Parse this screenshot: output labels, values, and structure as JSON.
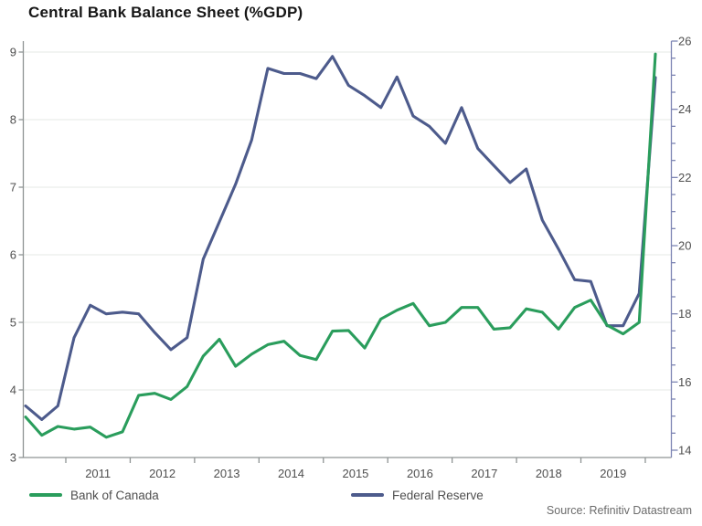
{
  "title": "Central Bank Balance Sheet (%GDP)",
  "source": "Source: Refinitiv Datastream",
  "legend": {
    "items": [
      {
        "label": "Bank of Canada"
      },
      {
        "label": "Federal Reserve"
      }
    ]
  },
  "colors": {
    "boc_line": "#2a9d5c",
    "fed_line": "#4d5b8c",
    "left_axis": "#8f9494",
    "bottom_axis": "#8f9494",
    "right_axis": "#7d85b3",
    "gridline": "#e4eae5",
    "tick_label": "#4f4f4f",
    "title_text": "#161616",
    "source_text": "#6b6b6b"
  },
  "chart_data": {
    "type": "line",
    "title": "Central Bank Balance Sheet (%GDP)",
    "x_label": "",
    "y_left_label": "",
    "y_right_label": "",
    "grid": "horizontal-left-integers",
    "legend_position": "bottom",
    "x_quarters": [
      "2010-Q2",
      "2010-Q3",
      "2010-Q4",
      "2011-Q1",
      "2011-Q2",
      "2011-Q3",
      "2011-Q4",
      "2012-Q1",
      "2012-Q2",
      "2012-Q3",
      "2012-Q4",
      "2013-Q1",
      "2013-Q2",
      "2013-Q3",
      "2013-Q4",
      "2014-Q1",
      "2014-Q2",
      "2014-Q3",
      "2014-Q4",
      "2015-Q1",
      "2015-Q2",
      "2015-Q3",
      "2015-Q4",
      "2016-Q1",
      "2016-Q2",
      "2016-Q3",
      "2016-Q4",
      "2017-Q1",
      "2017-Q2",
      "2017-Q3",
      "2017-Q4",
      "2018-Q1",
      "2018-Q2",
      "2018-Q3",
      "2018-Q4",
      "2019-Q1",
      "2019-Q2",
      "2019-Q3",
      "2019-Q4",
      "2020-Q1"
    ],
    "x_tick_years": [
      2011,
      2012,
      2013,
      2014,
      2015,
      2016,
      2017,
      2018,
      2019
    ],
    "left_axis": {
      "min": 3,
      "max": 9,
      "ticks": [
        3,
        4,
        5,
        6,
        7,
        8,
        9
      ]
    },
    "right_axis": {
      "min": 14,
      "max": 26,
      "ticks": [
        14,
        16,
        18,
        20,
        22,
        24,
        26
      ],
      "minor_step": 0.5
    },
    "series": [
      {
        "name": "Bank of Canada",
        "axis": "left",
        "color": "#2a9d5c",
        "values": [
          3.6,
          3.33,
          3.46,
          3.42,
          3.45,
          3.3,
          3.38,
          3.92,
          3.95,
          3.86,
          4.05,
          4.5,
          4.75,
          4.35,
          4.53,
          4.67,
          4.72,
          4.51,
          4.45,
          4.87,
          4.88,
          4.62,
          5.05,
          5.18,
          5.28,
          4.95,
          5.0,
          5.22,
          5.22,
          4.9,
          4.92,
          5.2,
          5.15,
          4.9,
          5.22,
          5.33,
          4.96,
          4.83,
          5.0,
          8.97
        ]
      },
      {
        "name": "Federal Reserve",
        "axis": "right",
        "color": "#4d5b8c",
        "values": [
          15.3,
          14.9,
          15.3,
          17.3,
          18.25,
          18.0,
          18.05,
          18.0,
          17.45,
          16.95,
          17.3,
          19.6,
          20.7,
          21.8,
          23.1,
          25.2,
          25.05,
          25.05,
          24.9,
          25.55,
          24.7,
          24.4,
          24.05,
          24.95,
          23.8,
          23.5,
          23.0,
          24.05,
          22.85,
          22.35,
          21.85,
          22.25,
          20.75,
          19.9,
          19.0,
          18.95,
          17.65,
          17.65,
          18.6,
          24.93
        ]
      }
    ]
  }
}
